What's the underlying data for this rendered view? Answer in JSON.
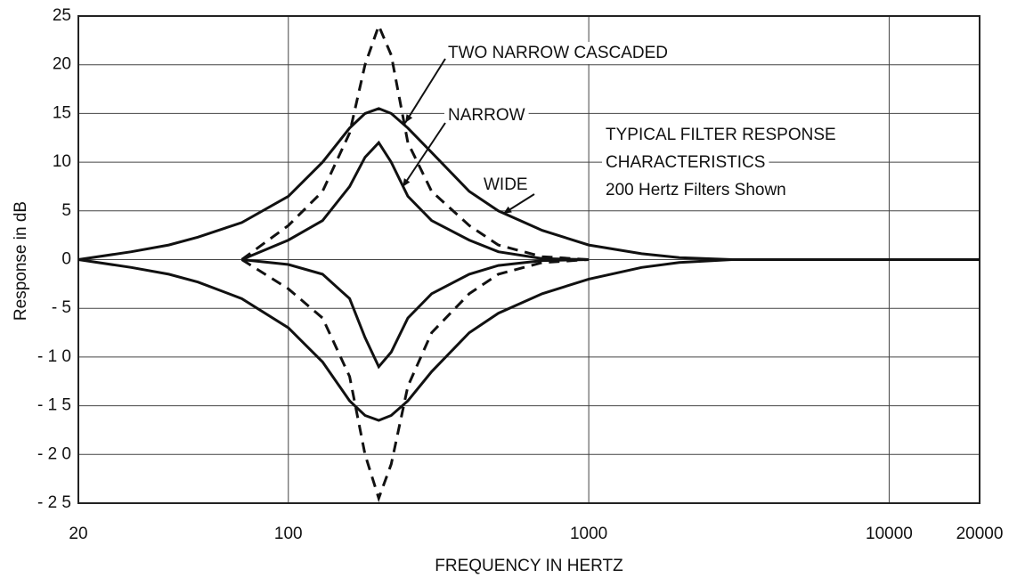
{
  "chart_data": {
    "type": "line",
    "xlabel": "FREQUENCY IN HERTZ",
    "ylabel": "Response in dB",
    "xscale": "log",
    "grid": true,
    "xlim": [
      20,
      20000
    ],
    "ylim": [
      -25,
      25
    ],
    "xticks": [
      20,
      100,
      1000,
      10000,
      20000
    ],
    "yticks": [
      25,
      20,
      15,
      10,
      5,
      0,
      {
        "value": -5,
        "label": "- 5"
      },
      {
        "value": -10,
        "label": "- 1 0"
      },
      {
        "value": -15,
        "label": "- 1 5"
      },
      {
        "value": -20,
        "label": "- 2 0"
      },
      {
        "value": -25,
        "label": "- 2 5"
      }
    ],
    "x": [
      20,
      30,
      40,
      50,
      70,
      100,
      130,
      160,
      180,
      200,
      220,
      250,
      300,
      400,
      500,
      700,
      1000,
      1500,
      2000,
      3000,
      20000
    ],
    "series": [
      {
        "name": "WIDE",
        "color": "#111111",
        "dashed": false,
        "values": [
          0,
          0.8,
          1.5,
          2.3,
          3.8,
          6.5,
          10,
          13.5,
          15,
          15.5,
          15,
          13.5,
          11,
          7,
          5,
          3,
          1.5,
          0.6,
          0.2,
          0,
          0
        ],
        "cut_values": [
          0,
          -0.8,
          -1.5,
          -2.3,
          -4,
          -7,
          -10.5,
          -14.5,
          -16,
          -16.5,
          -16,
          -14.5,
          -11.5,
          -7.5,
          -5.5,
          -3.5,
          -2,
          -0.8,
          -0.3,
          0,
          0
        ]
      },
      {
        "name": "NARROW",
        "color": "#111111",
        "dashed": false,
        "values": [
          null,
          null,
          null,
          null,
          0,
          2,
          4,
          7.5,
          10.5,
          12,
          10,
          6.5,
          4,
          2,
          0.8,
          0.1,
          0,
          null,
          null,
          null,
          null
        ],
        "cut_values": [
          null,
          null,
          null,
          null,
          0,
          -0.5,
          -1.5,
          -4,
          -8,
          -11,
          -9.5,
          -6,
          -3.5,
          -1.5,
          -0.6,
          -0.1,
          0,
          null,
          null,
          null,
          null
        ]
      },
      {
        "name": "TWO NARROW CASCADED",
        "color": "#111111",
        "dashed": true,
        "values": [
          null,
          null,
          null,
          null,
          0,
          3.5,
          7,
          13,
          20,
          24,
          21,
          12,
          7,
          3.5,
          1.5,
          0.3,
          0,
          null,
          null,
          null,
          null
        ],
        "cut_values": [
          null,
          null,
          null,
          null,
          0,
          -3,
          -6,
          -12,
          -20,
          -24.5,
          -21,
          -13,
          -7.5,
          -3.5,
          -1.5,
          -0.3,
          0,
          null,
          null,
          null,
          null
        ]
      }
    ],
    "annotations": [
      "TYPICAL FILTER RESPONSE",
      "CHARACTERISTICS",
      "200 Hertz Filters Shown"
    ]
  }
}
